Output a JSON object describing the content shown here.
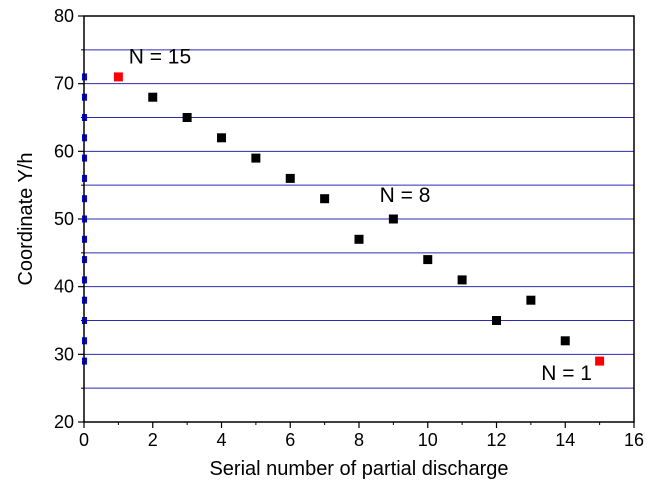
{
  "chart_data": {
    "type": "scatter",
    "title": "",
    "xlabel": "Serial number of partial discharge",
    "ylabel": "Coordinate Y/h",
    "xlim": [
      0,
      16
    ],
    "ylim": [
      20,
      80
    ],
    "x_ticks": [
      0,
      2,
      4,
      6,
      8,
      10,
      12,
      14,
      16
    ],
    "y_ticks": [
      20,
      30,
      40,
      50,
      60,
      70,
      80
    ],
    "grid": {
      "horizontal": true,
      "values": [
        25,
        30,
        35,
        40,
        45,
        50,
        55,
        60,
        65,
        70,
        75
      ],
      "color": "#2b2bb0"
    },
    "series": [
      {
        "x": [
          1,
          2,
          3,
          4,
          5,
          6,
          7,
          8,
          9,
          10,
          11,
          12,
          13,
          14,
          15
        ],
        "y": [
          71,
          68,
          65,
          62,
          59,
          56,
          53,
          47,
          50,
          44,
          41,
          35,
          38,
          32,
          29
        ],
        "point_colors": [
          "#ff0000",
          "#000000",
          "#000000",
          "#000000",
          "#000000",
          "#000000",
          "#000000",
          "#000000",
          "#000000",
          "#000000",
          "#000000",
          "#000000",
          "#000000",
          "#000000",
          "#ff0000"
        ]
      },
      {
        "x": [
          0,
          0,
          0,
          0,
          0,
          0,
          0,
          0,
          0,
          0,
          0,
          0,
          0,
          0,
          0
        ],
        "y": [
          71,
          68,
          65,
          62,
          59,
          56,
          53,
          50,
          47,
          44,
          41,
          38,
          35,
          32,
          29
        ],
        "color": "#0000ff",
        "marker": "dash"
      }
    ],
    "annotations": [
      {
        "text": "N = 15",
        "x": 1.3,
        "y": 73
      },
      {
        "text": "N = 8",
        "x": 8.6,
        "y": 52.5
      },
      {
        "text": "N = 1",
        "x": 13.3,
        "y": 26.2
      }
    ]
  }
}
